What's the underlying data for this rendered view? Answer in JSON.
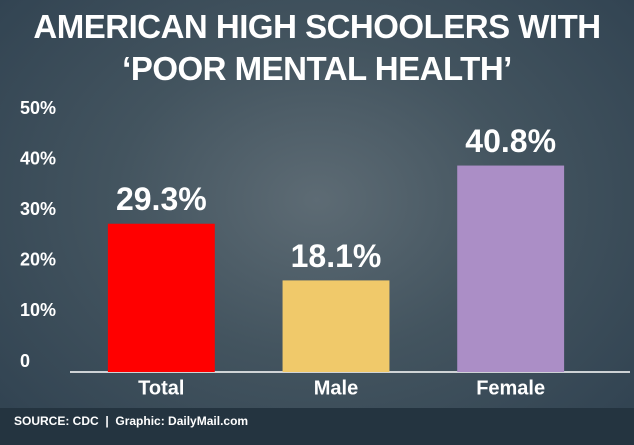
{
  "chart_data": {
    "type": "bar",
    "title": "AMERICAN HIGH SCHOOLERS WITH ‘POOR MENTAL HEALTH’",
    "categories": [
      "Total",
      "Male",
      "Female"
    ],
    "values": [
      29.3,
      18.1,
      40.8
    ],
    "value_labels": [
      "29.3%",
      "18.1%",
      "40.8%"
    ],
    "colors": [
      "#ff0000",
      "#f0c96a",
      "#ab8ec6"
    ],
    "ylim": [
      0,
      50
    ],
    "yticks": [
      {
        "value": 0,
        "label": "0"
      },
      {
        "value": 10,
        "label": "10%"
      },
      {
        "value": 20,
        "label": "20%"
      },
      {
        "value": 30,
        "label": "30%"
      },
      {
        "value": 40,
        "label": "40%"
      },
      {
        "value": 50,
        "label": "50%"
      }
    ],
    "grid": false,
    "source": "SOURCE: CDC",
    "credit": "Graphic: DailyMail.com"
  }
}
